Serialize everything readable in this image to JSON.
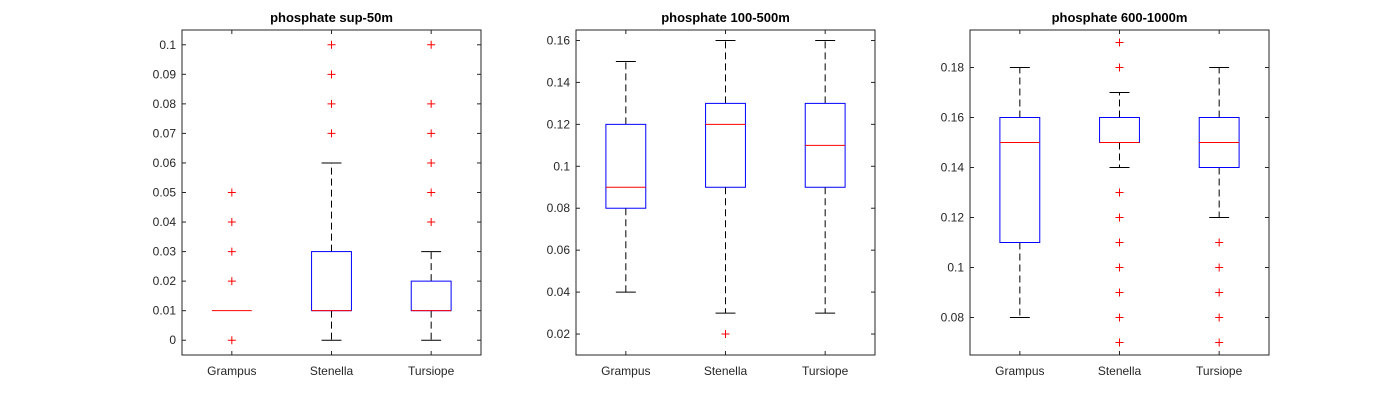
{
  "chart_data": [
    {
      "type": "box",
      "title": "phosphate sup-50m",
      "ylim": [
        -0.005,
        0.105
      ],
      "yticks": [
        0,
        0.01,
        0.02,
        0.03,
        0.04,
        0.05,
        0.06,
        0.07,
        0.08,
        0.09,
        0.1
      ],
      "ytick_labels": [
        "0",
        "0.01",
        "0.02",
        "0.03",
        "0.04",
        "0.05",
        "0.06",
        "0.07",
        "0.08",
        "0.09",
        "0.1"
      ],
      "categories": [
        "Grampus",
        "Stenella",
        "Tursiope"
      ],
      "boxes": [
        {
          "q1": 0.01,
          "median": 0.01,
          "q3": 0.01,
          "whisker_low": 0.01,
          "whisker_high": 0.01,
          "outliers": [
            0,
            0.02,
            0.03,
            0.04,
            0.05
          ]
        },
        {
          "q1": 0.01,
          "median": 0.01,
          "q3": 0.03,
          "whisker_low": 0.0,
          "whisker_high": 0.06,
          "outliers": [
            0.07,
            0.08,
            0.09,
            0.1
          ]
        },
        {
          "q1": 0.01,
          "median": 0.01,
          "q3": 0.02,
          "whisker_low": 0.0,
          "whisker_high": 0.03,
          "outliers": [
            0.04,
            0.05,
            0.06,
            0.07,
            0.08,
            0.1
          ]
        }
      ],
      "grid": false
    },
    {
      "type": "box",
      "title": "phosphate 100-500m",
      "ylim": [
        0.01,
        0.165
      ],
      "yticks": [
        0.02,
        0.04,
        0.06,
        0.08,
        0.1,
        0.12,
        0.14,
        0.16
      ],
      "ytick_labels": [
        "0.02",
        "0.04",
        "0.06",
        "0.08",
        "0.1",
        "0.12",
        "0.14",
        "0.16"
      ],
      "categories": [
        "Grampus",
        "Stenella",
        "Tursiope"
      ],
      "boxes": [
        {
          "q1": 0.08,
          "median": 0.09,
          "q3": 0.12,
          "whisker_low": 0.04,
          "whisker_high": 0.15,
          "outliers": []
        },
        {
          "q1": 0.09,
          "median": 0.12,
          "q3": 0.13,
          "whisker_low": 0.03,
          "whisker_high": 0.16,
          "outliers": [
            0.02
          ]
        },
        {
          "q1": 0.09,
          "median": 0.11,
          "q3": 0.13,
          "whisker_low": 0.03,
          "whisker_high": 0.16,
          "outliers": []
        }
      ],
      "grid": false
    },
    {
      "type": "box",
      "title": "phosphate 600-1000m",
      "ylim": [
        0.065,
        0.195
      ],
      "yticks": [
        0.08,
        0.1,
        0.12,
        0.14,
        0.16,
        0.18
      ],
      "ytick_labels": [
        "0.08",
        "0.1",
        "0.12",
        "0.14",
        "0.16",
        "0.18"
      ],
      "categories": [
        "Grampus",
        "Stenella",
        "Tursiope"
      ],
      "boxes": [
        {
          "q1": 0.11,
          "median": 0.15,
          "q3": 0.16,
          "whisker_low": 0.08,
          "whisker_high": 0.18,
          "outliers": []
        },
        {
          "q1": 0.15,
          "median": 0.15,
          "q3": 0.16,
          "whisker_low": 0.14,
          "whisker_high": 0.17,
          "outliers": [
            0.07,
            0.08,
            0.09,
            0.1,
            0.11,
            0.12,
            0.13,
            0.18,
            0.19
          ]
        },
        {
          "q1": 0.14,
          "median": 0.15,
          "q3": 0.16,
          "whisker_low": 0.12,
          "whisker_high": 0.18,
          "outliers": [
            0.07,
            0.08,
            0.09,
            0.1,
            0.11
          ]
        }
      ],
      "grid": false
    }
  ],
  "colors": {
    "box": "#0000ff",
    "median": "#ff0000",
    "whisker": "#000000",
    "outlier": "#ff0000",
    "axis": "#262626"
  }
}
